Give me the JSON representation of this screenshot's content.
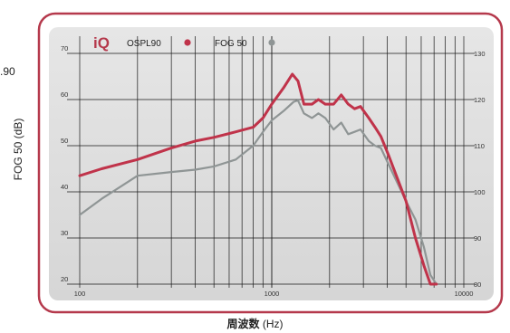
{
  "page": {
    "left_cut_label": ".90",
    "left_axis_label": "FOG 50 (dB)",
    "x_axis_title": "周波数",
    "x_axis_unit": "(Hz)"
  },
  "colors": {
    "ospl90": "#c0334a",
    "fog50": "#8f9595",
    "panel_background": "#dedede",
    "frame_border": "#b5394c",
    "grid": "#1a1a1a"
  },
  "chart_data": {
    "type": "line",
    "x_scale": "log",
    "xlim": [
      100,
      10000
    ],
    "ylim_left": [
      20,
      70
    ],
    "ylim_right": [
      80,
      130
    ],
    "x_ticks": [
      "100",
      "1000",
      "10000"
    ],
    "y_ticks_left": [
      "20",
      "30",
      "40",
      "50",
      "60",
      "70"
    ],
    "y_ticks_right": [
      "80",
      "90",
      "100",
      "110",
      "120",
      "130"
    ],
    "grid": true,
    "legend": {
      "position": "top-left",
      "brand": "iQ",
      "entries": [
        {
          "label": "OSPL90",
          "color": "#c0334a"
        },
        {
          "label": "FOG 50",
          "color": "#8f9595"
        }
      ]
    },
    "series": [
      {
        "name": "OSPL90",
        "axis": "right",
        "color": "#c0334a",
        "x": [
          100,
          130,
          200,
          300,
          400,
          500,
          650,
          800,
          900,
          1000,
          1150,
          1280,
          1370,
          1470,
          1620,
          1750,
          1900,
          2100,
          2300,
          2500,
          2700,
          2900,
          3200,
          3450,
          3700,
          4050,
          4500,
          5000,
          5600,
          6200,
          6700,
          7200
        ],
        "values": [
          103.5,
          105,
          107,
          109.5,
          111,
          111.8,
          113,
          114,
          116,
          119,
          122.5,
          125.5,
          124,
          119,
          119,
          120,
          119,
          119,
          121,
          119,
          118,
          118.5,
          116,
          114,
          112,
          108,
          103,
          98,
          90,
          84,
          80,
          80
        ]
      },
      {
        "name": "FOG 50",
        "axis": "left",
        "color": "#8f9595",
        "x": [
          100,
          130,
          200,
          300,
          400,
          500,
          650,
          800,
          900,
          1000,
          1150,
          1300,
          1370,
          1470,
          1620,
          1750,
          1900,
          2100,
          2300,
          2500,
          2700,
          2900,
          3200,
          3450,
          3700,
          4050,
          4500,
          5000,
          5600,
          6200,
          6700,
          7200
        ],
        "values": [
          35,
          38.5,
          43.5,
          44.3,
          44.8,
          45.5,
          47,
          50,
          53,
          55.5,
          57.5,
          59.5,
          59.8,
          57,
          56,
          57,
          56,
          53.5,
          55,
          52.5,
          53,
          53.5,
          51,
          50,
          49.5,
          46,
          42,
          38,
          34,
          28,
          22,
          20
        ]
      }
    ]
  }
}
